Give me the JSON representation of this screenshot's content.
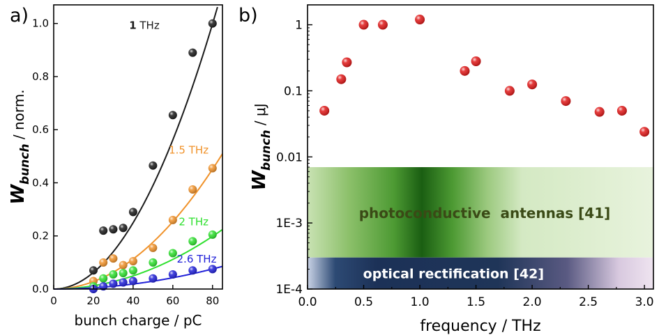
{
  "panels": [
    {
      "label": "a)"
    },
    {
      "label": "b)"
    }
  ],
  "colors": {
    "axis": "#000000",
    "black_series": "#1a1a1a",
    "orange_series": "#f0922a",
    "green_series": "#2ee02e",
    "blue_series": "#2020d8",
    "red_points": "#e01818",
    "pca_band": "#2e7d1e",
    "or_band": "#1f3558"
  },
  "chart_data": [
    {
      "type": "scatter",
      "panel": "a)",
      "xlabel": "bunch charge / pC",
      "ylabel": {
        "main": "W",
        "sub": "bunch",
        "rest": " / norm."
      },
      "xlim": [
        0,
        85
      ],
      "ylim": [
        0,
        1.07
      ],
      "xticks": [
        "0",
        "20",
        "40",
        "60",
        "80"
      ],
      "xtick_values": [
        0,
        20,
        40,
        60,
        80
      ],
      "yticks": [
        "0.0",
        "0.2",
        "0.4",
        "0.6",
        "0.8",
        "1.0"
      ],
      "ytick_values": [
        0,
        0.2,
        0.4,
        0.6,
        0.8,
        1.0
      ],
      "grid": false,
      "series": [
        {
          "name": "1 THz",
          "name_bold": "1",
          "name_rest": " THz",
          "color": "#1a1a1a",
          "x": [
            20,
            25,
            30,
            35,
            40,
            50,
            60,
            70,
            80
          ],
          "y": [
            0.07,
            0.22,
            0.225,
            0.23,
            0.29,
            0.465,
            0.655,
            0.89,
            1.0
          ],
          "fit_coeff": 0.000156,
          "label_anchor": [
            38,
            0.98
          ]
        },
        {
          "name": "1.5 THz",
          "name_bold": "",
          "name_rest": "1.5 THz",
          "color": "#f0922a",
          "x": [
            20,
            25,
            30,
            35,
            40,
            50,
            60,
            70,
            80
          ],
          "y": [
            0.03,
            0.1,
            0.115,
            0.09,
            0.105,
            0.155,
            0.26,
            0.375,
            0.455
          ],
          "fit_coeff": 7.05e-05,
          "label_anchor": [
            58,
            0.51
          ]
        },
        {
          "name": "2 THz",
          "name_bold": "",
          "name_rest": "2 THz",
          "color": "#2ee02e",
          "x": [
            20,
            25,
            30,
            35,
            40,
            50,
            60,
            70,
            80
          ],
          "y": [
            0.01,
            0.04,
            0.055,
            0.06,
            0.07,
            0.1,
            0.135,
            0.18,
            0.205
          ],
          "fit_coeff": 3.1e-05,
          "label_anchor": [
            63,
            0.24
          ]
        },
        {
          "name": "2.6 THz",
          "name_bold": "",
          "name_rest": "2.6 THz",
          "color": "#2020d8",
          "x": [
            20,
            25,
            30,
            35,
            40,
            50,
            60,
            70,
            80
          ],
          "y": [
            0.0,
            0.01,
            0.02,
            0.025,
            0.03,
            0.04,
            0.055,
            0.07,
            0.075
          ],
          "fit_coeff": 1.18e-05,
          "label_anchor": [
            62,
            0.1
          ]
        }
      ]
    },
    {
      "type": "scatter",
      "panel": "b)",
      "xlabel": "frequency / THz",
      "ylabel": {
        "main": "W",
        "sub": "bunch",
        "rest": " / μJ"
      },
      "log_y": true,
      "xlim": [
        0,
        3.08
      ],
      "ylim": [
        0.0001,
        2
      ],
      "xticks": [
        "0.0",
        "0.5",
        "1.0",
        "1.5",
        "2.0",
        "2.5",
        "3.0"
      ],
      "xtick_values": [
        0,
        0.5,
        1.0,
        1.5,
        2.0,
        2.5,
        3.0
      ],
      "yticks": [
        "1E-4",
        "1E-3",
        "0.01",
        "0.1",
        "1"
      ],
      "ytick_values": [
        0.0001,
        0.001,
        0.01,
        0.1,
        1
      ],
      "grid": false,
      "series": [
        {
          "color": "#e01818",
          "x": [
            0.15,
            0.3,
            0.35,
            0.5,
            0.67,
            1.0,
            1.4,
            1.5,
            1.8,
            2.0,
            2.3,
            2.6,
            2.8,
            3.0
          ],
          "y": [
            0.05,
            0.15,
            0.27,
            1.0,
            1.0,
            1.2,
            0.2,
            0.28,
            0.1,
            0.125,
            0.07,
            0.048,
            0.05,
            0.024
          ]
        }
      ],
      "bands": [
        {
          "label": "photoconductive  antennas [41]",
          "x_range": [
            0,
            3.08
          ],
          "y_range": [
            0.0003,
            0.007
          ],
          "color": "#2e7d1e"
        },
        {
          "label": "optical rectification [42]",
          "x_range": [
            0,
            3.08
          ],
          "y_range": [
            0.0001,
            0.0003
          ],
          "color": "#1f3558"
        }
      ]
    }
  ]
}
